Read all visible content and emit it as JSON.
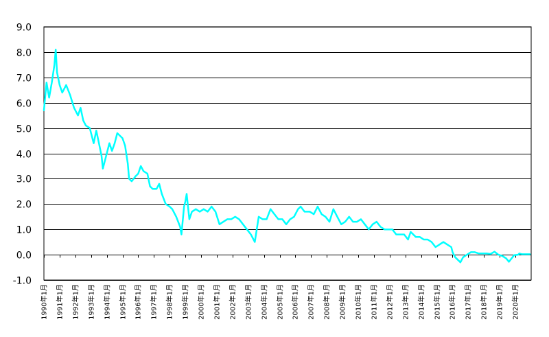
{
  "chart_data": {
    "type": "line",
    "title": "",
    "xlabel": "",
    "ylabel": "",
    "ylim": [
      -1.0,
      9.0
    ],
    "xlim": [
      "1990-01",
      "2020-12"
    ],
    "grid": "horizontal",
    "legend": "none",
    "colors": {
      "line": "#00ffff",
      "grid": "#000000",
      "axis": "#000000"
    },
    "y_ticks": [
      {
        "value": -1.0,
        "label": "-1.0"
      },
      {
        "value": 0.0,
        "label": "0.0"
      },
      {
        "value": 1.0,
        "label": "1.0"
      },
      {
        "value": 2.0,
        "label": "2.0"
      },
      {
        "value": 3.0,
        "label": "3.0"
      },
      {
        "value": 4.0,
        "label": "4.0"
      },
      {
        "value": 5.0,
        "label": "5.0"
      },
      {
        "value": 6.0,
        "label": "6.0"
      },
      {
        "value": 7.0,
        "label": "7.0"
      },
      {
        "value": 8.0,
        "label": "8.0"
      },
      {
        "value": 9.0,
        "label": "9.0"
      }
    ],
    "x_ticks": [
      {
        "value": "1990-01",
        "label": "1990年1月"
      },
      {
        "value": "1991-01",
        "label": "1991年1月"
      },
      {
        "value": "1992-01",
        "label": "1992年1月"
      },
      {
        "value": "1993-01",
        "label": "1993年1月"
      },
      {
        "value": "1994-01",
        "label": "1994年1月"
      },
      {
        "value": "1995-01",
        "label": "1995年1月"
      },
      {
        "value": "1996-01",
        "label": "1996年1月"
      },
      {
        "value": "1997-01",
        "label": "1997年1月"
      },
      {
        "value": "1998-01",
        "label": "1998年1月"
      },
      {
        "value": "1999-01",
        "label": "1999年1月"
      },
      {
        "value": "2000-01",
        "label": "2000年1月"
      },
      {
        "value": "2001-01",
        "label": "2001年1月"
      },
      {
        "value": "2002-01",
        "label": "2002年1月"
      },
      {
        "value": "2003-01",
        "label": "2003年1月"
      },
      {
        "value": "2004-01",
        "label": "2004年1月"
      },
      {
        "value": "2005-01",
        "label": "2005年1月"
      },
      {
        "value": "2006-01",
        "label": "2006年1月"
      },
      {
        "value": "2007-01",
        "label": "2007年1月"
      },
      {
        "value": "2008-01",
        "label": "2008年1月"
      },
      {
        "value": "2009-01",
        "label": "2009年1月"
      },
      {
        "value": "2010-01",
        "label": "2010年1月"
      },
      {
        "value": "2011-01",
        "label": "2011年1月"
      },
      {
        "value": "2012-01",
        "label": "2012年1月"
      },
      {
        "value": "2013-01",
        "label": "2013年1月"
      },
      {
        "value": "2014-01",
        "label": "2014年1月"
      },
      {
        "value": "2015-01",
        "label": "2015年1月"
      },
      {
        "value": "2016-01",
        "label": "2016年1月"
      },
      {
        "value": "2017-01",
        "label": "2017年1月"
      },
      {
        "value": "2018-01",
        "label": "2018年1月"
      },
      {
        "value": "2019-01",
        "label": "2019年1月"
      },
      {
        "value": "2020-01",
        "label": "2020年1月"
      }
    ],
    "series": [
      {
        "points": [
          [
            "1990-01",
            5.7
          ],
          [
            "1990-03",
            6.8
          ],
          [
            "1990-05",
            6.2
          ],
          [
            "1990-07",
            6.8
          ],
          [
            "1990-09",
            7.5
          ],
          [
            "1990-10",
            8.1
          ],
          [
            "1990-11",
            7.2
          ],
          [
            "1991-01",
            6.7
          ],
          [
            "1991-03",
            6.4
          ],
          [
            "1991-06",
            6.7
          ],
          [
            "1991-09",
            6.3
          ],
          [
            "1991-12",
            5.8
          ],
          [
            "1992-03",
            5.5
          ],
          [
            "1992-05",
            5.8
          ],
          [
            "1992-07",
            5.3
          ],
          [
            "1992-09",
            5.1
          ],
          [
            "1992-12",
            5.0
          ],
          [
            "1993-03",
            4.4
          ],
          [
            "1993-05",
            4.9
          ],
          [
            "1993-07",
            4.4
          ],
          [
            "1993-09",
            3.9
          ],
          [
            "1993-10",
            3.4
          ],
          [
            "1993-12",
            3.8
          ],
          [
            "1994-03",
            4.4
          ],
          [
            "1994-05",
            4.1
          ],
          [
            "1994-07",
            4.4
          ],
          [
            "1994-09",
            4.8
          ],
          [
            "1995-01",
            4.6
          ],
          [
            "1995-03",
            4.3
          ],
          [
            "1995-05",
            3.6
          ],
          [
            "1995-06",
            3.0
          ],
          [
            "1995-08",
            2.9
          ],
          [
            "1995-11",
            3.1
          ],
          [
            "1996-01",
            3.2
          ],
          [
            "1996-03",
            3.5
          ],
          [
            "1996-05",
            3.3
          ],
          [
            "1996-08",
            3.2
          ],
          [
            "1996-10",
            2.7
          ],
          [
            "1996-12",
            2.6
          ],
          [
            "1997-03",
            2.6
          ],
          [
            "1997-05",
            2.8
          ],
          [
            "1997-07",
            2.4
          ],
          [
            "1997-10",
            2.0
          ],
          [
            "1998-01",
            1.9
          ],
          [
            "1998-03",
            1.8
          ],
          [
            "1998-06",
            1.5
          ],
          [
            "1998-09",
            1.1
          ],
          [
            "1998-10",
            0.8
          ],
          [
            "1998-12",
            1.9
          ],
          [
            "1999-01",
            2.1
          ],
          [
            "1999-02",
            2.4
          ],
          [
            "1999-04",
            1.4
          ],
          [
            "1999-06",
            1.7
          ],
          [
            "1999-09",
            1.8
          ],
          [
            "1999-12",
            1.7
          ],
          [
            "2000-03",
            1.8
          ],
          [
            "2000-06",
            1.7
          ],
          [
            "2000-09",
            1.9
          ],
          [
            "2000-12",
            1.7
          ],
          [
            "2001-03",
            1.2
          ],
          [
            "2001-06",
            1.3
          ],
          [
            "2001-09",
            1.4
          ],
          [
            "2001-12",
            1.4
          ],
          [
            "2002-03",
            1.5
          ],
          [
            "2002-06",
            1.4
          ],
          [
            "2002-09",
            1.2
          ],
          [
            "2002-12",
            1.0
          ],
          [
            "2003-03",
            0.8
          ],
          [
            "2003-06",
            0.5
          ],
          [
            "2003-09",
            1.5
          ],
          [
            "2003-12",
            1.4
          ],
          [
            "2004-03",
            1.4
          ],
          [
            "2004-06",
            1.8
          ],
          [
            "2004-09",
            1.6
          ],
          [
            "2004-12",
            1.4
          ],
          [
            "2005-03",
            1.4
          ],
          [
            "2005-06",
            1.2
          ],
          [
            "2005-09",
            1.4
          ],
          [
            "2005-12",
            1.5
          ],
          [
            "2006-03",
            1.8
          ],
          [
            "2006-05",
            1.9
          ],
          [
            "2006-08",
            1.7
          ],
          [
            "2006-12",
            1.7
          ],
          [
            "2007-03",
            1.6
          ],
          [
            "2007-06",
            1.9
          ],
          [
            "2007-09",
            1.6
          ],
          [
            "2007-12",
            1.5
          ],
          [
            "2008-03",
            1.3
          ],
          [
            "2008-06",
            1.8
          ],
          [
            "2008-09",
            1.5
          ],
          [
            "2008-12",
            1.2
          ],
          [
            "2009-03",
            1.3
          ],
          [
            "2009-06",
            1.5
          ],
          [
            "2009-09",
            1.3
          ],
          [
            "2009-12",
            1.3
          ],
          [
            "2010-03",
            1.4
          ],
          [
            "2010-06",
            1.2
          ],
          [
            "2010-09",
            1.0
          ],
          [
            "2010-12",
            1.2
          ],
          [
            "2011-03",
            1.3
          ],
          [
            "2011-06",
            1.1
          ],
          [
            "2011-09",
            1.0
          ],
          [
            "2011-12",
            1.0
          ],
          [
            "2012-03",
            1.0
          ],
          [
            "2012-06",
            0.8
          ],
          [
            "2012-09",
            0.8
          ],
          [
            "2012-12",
            0.8
          ],
          [
            "2013-03",
            0.6
          ],
          [
            "2013-05",
            0.9
          ],
          [
            "2013-09",
            0.7
          ],
          [
            "2013-12",
            0.7
          ],
          [
            "2014-03",
            0.6
          ],
          [
            "2014-06",
            0.6
          ],
          [
            "2014-09",
            0.5
          ],
          [
            "2014-12",
            0.3
          ],
          [
            "2015-03",
            0.4
          ],
          [
            "2015-06",
            0.5
          ],
          [
            "2015-09",
            0.4
          ],
          [
            "2015-12",
            0.3
          ],
          [
            "2016-01",
            0.1
          ],
          [
            "2016-03",
            -0.1
          ],
          [
            "2016-07",
            -0.3
          ],
          [
            "2016-09",
            -0.1
          ],
          [
            "2016-12",
            0.0
          ],
          [
            "2017-03",
            0.1
          ],
          [
            "2017-06",
            0.1
          ],
          [
            "2017-09",
            0.05
          ],
          [
            "2017-12",
            0.05
          ],
          [
            "2018-03",
            0.05
          ],
          [
            "2018-06",
            0.03
          ],
          [
            "2018-09",
            0.12
          ],
          [
            "2018-12",
            0.0
          ],
          [
            "2019-03",
            -0.05
          ],
          [
            "2019-06",
            -0.15
          ],
          [
            "2019-08",
            -0.28
          ],
          [
            "2019-10",
            -0.15
          ],
          [
            "2019-12",
            -0.02
          ],
          [
            "2020-03",
            0.0
          ],
          [
            "2020-04",
            0.05
          ],
          [
            "2020-06",
            0.02
          ],
          [
            "2020-09",
            0.02
          ],
          [
            "2020-12",
            0.02
          ]
        ]
      }
    ]
  }
}
